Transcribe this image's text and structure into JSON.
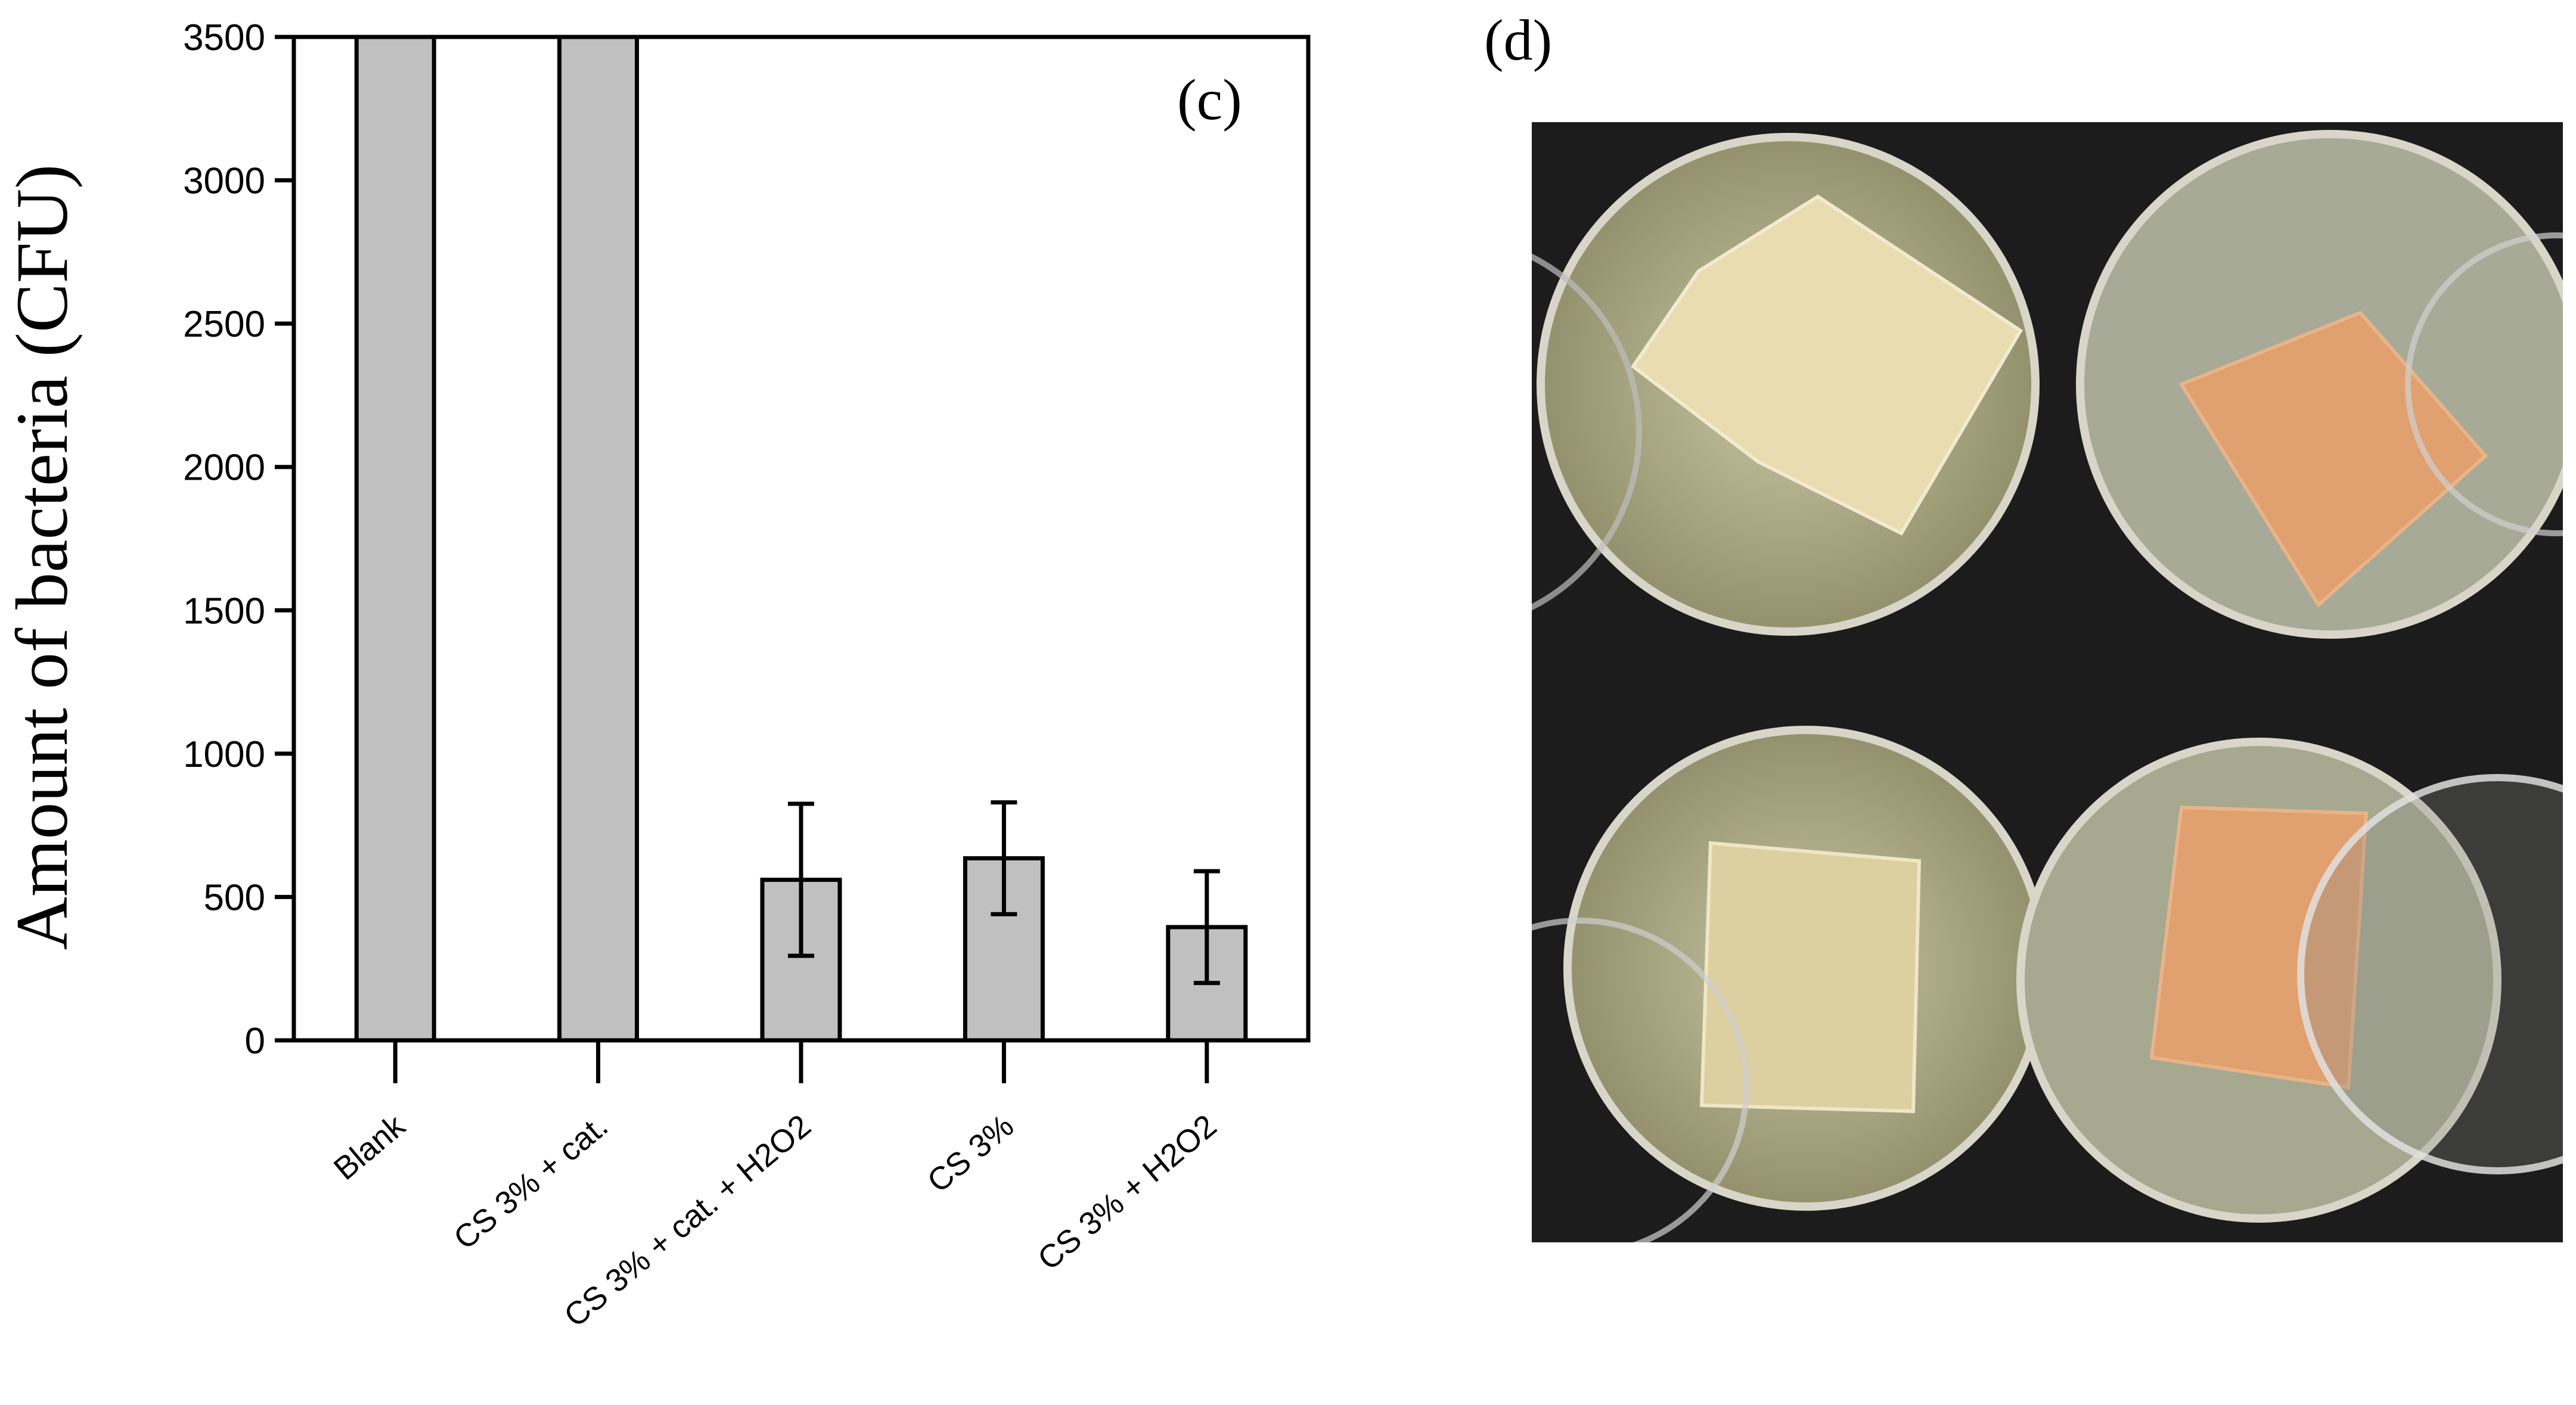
{
  "chart_data": {
    "type": "bar",
    "panel_label": "(c)",
    "ylabel": "Amount of bacteria (CFU)",
    "xlabel": "",
    "ylim": [
      0,
      3500
    ],
    "yticks": [
      0,
      500,
      1000,
      1500,
      2000,
      2500,
      3000,
      3500
    ],
    "categories": [
      "Blank",
      "CS 3% + cat.",
      "CS 3% + cat. + H2O2",
      "CS 3%",
      "CS 3% + H2O2"
    ],
    "values": [
      3500,
      3500,
      560,
      635,
      395
    ],
    "errors": [
      null,
      null,
      265,
      195,
      195
    ],
    "bar_color": "#c0c0c0",
    "grid": false
  },
  "photo": {
    "panel_label": "(d)",
    "background_color": "#1c1c1c",
    "film_light_color": "#e8dcb0",
    "film_orange_color": "#e0a070",
    "agar_color": "#b8b490"
  }
}
